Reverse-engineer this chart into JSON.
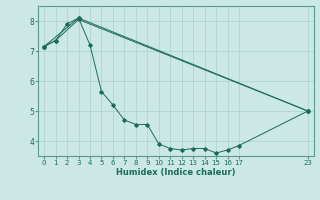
{
  "xlabel": "Humidex (Indice chaleur)",
  "bg_color": "#cce8e6",
  "grid_color": "#aad0cc",
  "line_color": "#1a6b5a",
  "spine_color": "#5a9a8a",
  "xlim": [
    -0.5,
    23.5
  ],
  "ylim": [
    3.5,
    8.5
  ],
  "yticks": [
    4,
    5,
    6,
    7,
    8
  ],
  "xticks": [
    0,
    1,
    2,
    3,
    4,
    5,
    6,
    7,
    8,
    9,
    10,
    11,
    12,
    13,
    14,
    15,
    16,
    17,
    23
  ],
  "line1": {
    "x": [
      0,
      1,
      2,
      3,
      4,
      5,
      6,
      7,
      8,
      9,
      10,
      11,
      12,
      13,
      14,
      15,
      16,
      17,
      23
    ],
    "y": [
      7.15,
      7.35,
      7.9,
      8.1,
      7.2,
      5.65,
      5.2,
      4.7,
      4.55,
      4.55,
      3.9,
      3.75,
      3.7,
      3.75,
      3.75,
      3.6,
      3.7,
      3.85,
      5.0
    ]
  },
  "line2": {
    "x": [
      0,
      3,
      23
    ],
    "y": [
      7.15,
      8.1,
      5.0
    ]
  },
  "line3": {
    "x": [
      0,
      1,
      3,
      23
    ],
    "y": [
      7.15,
      7.35,
      8.05,
      5.0
    ]
  }
}
